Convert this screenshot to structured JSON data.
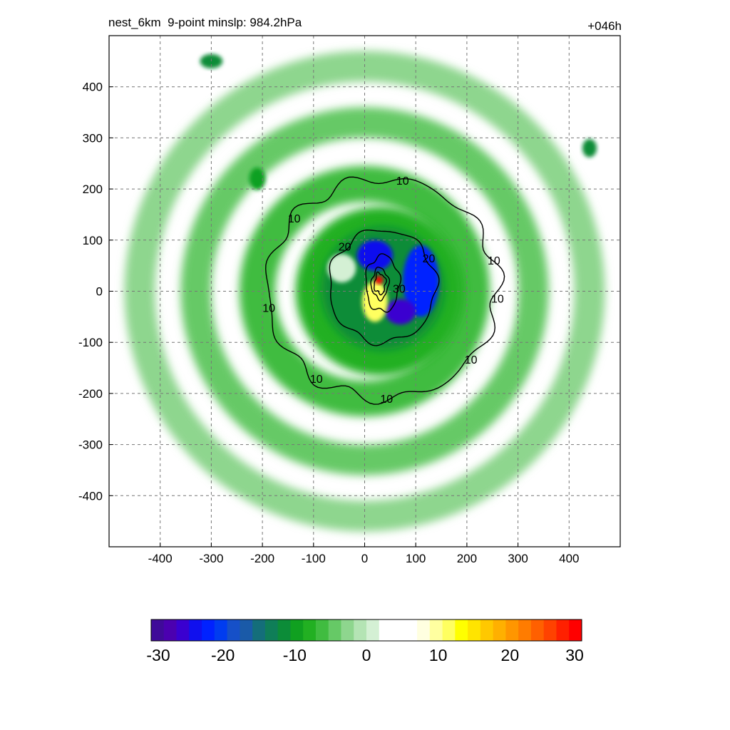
{
  "header": {
    "title": "nest_6km  9-point minslp: 984.2hPa",
    "lead_time": "+046h"
  },
  "chart_data": {
    "type": "heatmap",
    "title": "nest_6km  9-point minslp: 984.2hPa",
    "annotation_right": "+046h",
    "xlabel": "",
    "ylabel": "",
    "xlim": [
      -500,
      500
    ],
    "ylim": [
      -500,
      500
    ],
    "x_ticks": [
      -400,
      -300,
      -200,
      -100,
      0,
      100,
      200,
      300,
      400
    ],
    "y_ticks": [
      400,
      300,
      200,
      100,
      0,
      -100,
      -200,
      -300,
      -400
    ],
    "grid": true,
    "grid_style": "dashed",
    "colorbar": {
      "range": [
        -30,
        30
      ],
      "ticks": [
        -30,
        -20,
        -10,
        0,
        10,
        20,
        30
      ],
      "colors": [
        "#3f0a99",
        "#4b00b0",
        "#3a00d0",
        "#1010ee",
        "#0022ff",
        "#003cf0",
        "#1650c8",
        "#1a5aa8",
        "#146e7a",
        "#0f7e58",
        "#0c8c38",
        "#10a020",
        "#22b022",
        "#40bc40",
        "#66c966",
        "#8ed68e",
        "#b4e4b4",
        "#d4f0d4",
        "#ffffff",
        "#ffffff",
        "#ffffff",
        "#ffffe0",
        "#ffffa0",
        "#ffff60",
        "#ffff00",
        "#ffe400",
        "#ffc800",
        "#ffb000",
        "#ff9600",
        "#ff7c00",
        "#ff6000",
        "#ff4200",
        "#ff2000",
        "#ff0000"
      ]
    },
    "filled_features": [
      {
        "kind": "ring",
        "cx": 0,
        "cy": 0,
        "r_inner": 410,
        "r_outer": 470,
        "value": -3
      },
      {
        "kind": "ring",
        "cx": 0,
        "cy": 0,
        "r_inner": 300,
        "r_outer": 360,
        "value": -4
      },
      {
        "kind": "ring",
        "cx": 0,
        "cy": 0,
        "r_inner": 175,
        "r_outer": 245,
        "value": -6
      },
      {
        "kind": "disk",
        "cx": 30,
        "cy": 0,
        "r": 165,
        "value": -8
      },
      {
        "kind": "disk",
        "cx": 35,
        "cy": 5,
        "r": 120,
        "value": -12
      },
      {
        "kind": "blob",
        "cx": 110,
        "cy": 20,
        "rx": 35,
        "ry": 70,
        "value": -22
      },
      {
        "kind": "blob",
        "cx": 20,
        "cy": 70,
        "rx": 35,
        "ry": 30,
        "value": -24
      },
      {
        "kind": "blob",
        "cx": 70,
        "cy": -40,
        "rx": 30,
        "ry": 25,
        "value": -26
      },
      {
        "kind": "blob",
        "cx": 20,
        "cy": -20,
        "rx": 25,
        "ry": 40,
        "value": 11
      },
      {
        "kind": "blob",
        "cx": 28,
        "cy": 22,
        "rx": 8,
        "ry": 8,
        "value": 30
      },
      {
        "kind": "blob",
        "cx": -45,
        "cy": 45,
        "rx": 28,
        "ry": 28,
        "value": 0
      },
      {
        "kind": "blob",
        "cx": -300,
        "cy": 450,
        "rx": 22,
        "ry": 14,
        "value": -12
      },
      {
        "kind": "blob",
        "cx": 440,
        "cy": 280,
        "rx": 14,
        "ry": 18,
        "value": -12
      },
      {
        "kind": "blob",
        "cx": -210,
        "cy": 220,
        "rx": 16,
        "ry": 22,
        "value": -9
      }
    ],
    "contours": [
      {
        "level": 10,
        "labels": [
          "10",
          "10",
          "10",
          "10",
          "10",
          "10",
          "10",
          "10"
        ]
      },
      {
        "level": 20,
        "labels": [
          "20",
          "20"
        ]
      },
      {
        "level": 30,
        "labels": [
          "30"
        ]
      }
    ]
  }
}
